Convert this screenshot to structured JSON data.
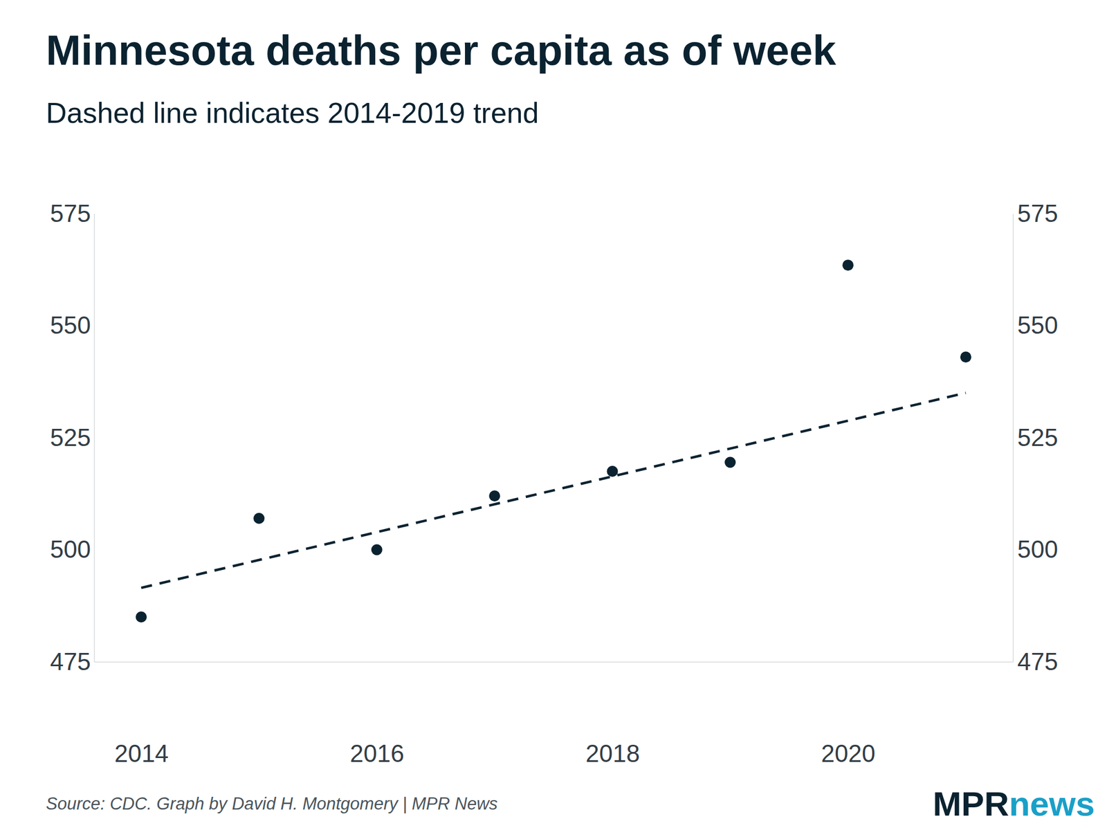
{
  "chart_data": {
    "type": "scatter",
    "title": "Minnesota deaths per capita as of week",
    "subtitle": "Dashed line indicates 2014-2019 trend",
    "source": "Source: CDC. Graph by David H. Montgomery | MPR News",
    "logo": [
      "MPR",
      "news"
    ],
    "xlim": [
      2013.6,
      2021.4
    ],
    "xticks": [
      2014,
      2016,
      2018,
      2020
    ],
    "ylim": [
      475,
      575
    ],
    "yticks": [
      475,
      500,
      525,
      550,
      575
    ],
    "series": [
      {
        "type": "scatter",
        "marker": "circle",
        "color": "#0b2230",
        "x": [
          2014,
          2015,
          2016,
          2017,
          2018,
          2019,
          2020,
          2021
        ],
        "values": [
          485,
          507,
          500,
          512,
          517.5,
          519.5,
          563.5,
          543
        ]
      },
      {
        "type": "line",
        "line_style": "dashed",
        "color": "#0b2230",
        "x": [
          2014,
          2021
        ],
        "values": [
          491.5,
          535
        ]
      }
    ]
  }
}
